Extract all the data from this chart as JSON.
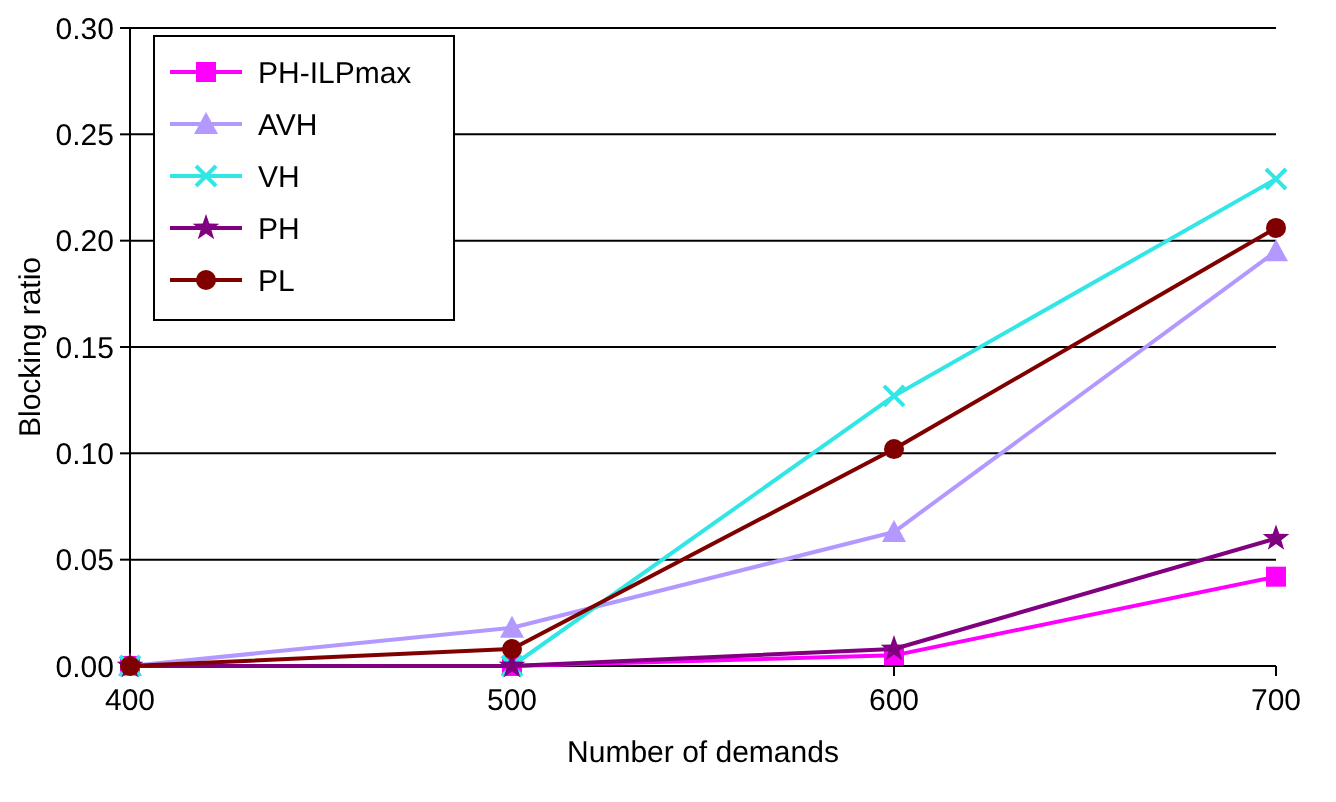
{
  "chart_data": {
    "type": "line",
    "xlabel": "Number of demands",
    "ylabel": "Blocking ratio",
    "x": [
      400,
      500,
      600,
      700
    ],
    "series": [
      {
        "name": "PH-ILPmax",
        "color": "#ff00ff",
        "marker": "square",
        "values": [
          0,
          0,
          0.005,
          0.042
        ]
      },
      {
        "name": "AVH",
        "color": "#b399ff",
        "marker": "triangle",
        "values": [
          0,
          0.018,
          0.063,
          0.195
        ]
      },
      {
        "name": "VH",
        "color": "#33e6e6",
        "marker": "cross",
        "values": [
          0,
          0,
          0.127,
          0.229
        ]
      },
      {
        "name": "PH",
        "color": "#800080",
        "marker": "star",
        "values": [
          0,
          0,
          0.008,
          0.06
        ]
      },
      {
        "name": "PL",
        "color": "#800000",
        "marker": "circle",
        "values": [
          0,
          0.008,
          0.102,
          0.206
        ]
      }
    ],
    "xlim": [
      400,
      700
    ],
    "xticks": [
      400,
      500,
      600,
      700
    ],
    "ylim": [
      0,
      0.3
    ],
    "yticks": [
      {
        "value": 0,
        "label": "0.00"
      },
      {
        "value": 0.05,
        "label": "0.05"
      },
      {
        "value": 0.1,
        "label": "0.10"
      },
      {
        "value": 0.15,
        "label": "0.15"
      },
      {
        "value": 0.2,
        "label": "0.20"
      },
      {
        "value": 0.25,
        "label": "0.25"
      },
      {
        "value": 0.3,
        "label": "0.30"
      }
    ],
    "grid": "y",
    "legend": "top left",
    "line_style": "solid"
  }
}
